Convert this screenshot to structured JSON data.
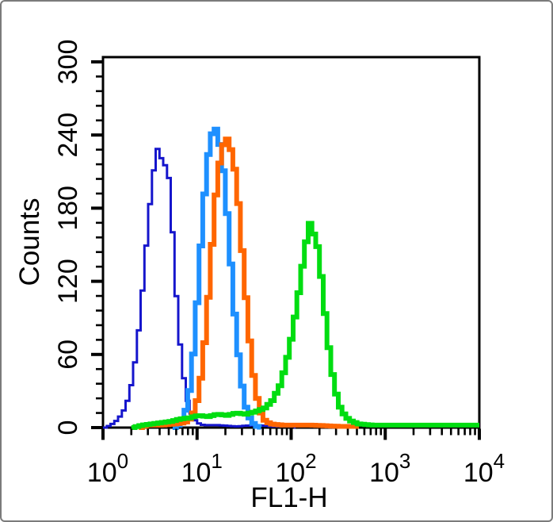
{
  "figure": {
    "background": "#ffffff",
    "border_color": "#7b7b7b"
  },
  "chart_data": {
    "type": "line",
    "subtype": "flow-cytometry-step-histogram",
    "title": "",
    "xlabel": "FL1-H",
    "ylabel": "Counts",
    "x_scale": "log10",
    "x_range": [
      1,
      10000
    ],
    "y_range": [
      0,
      300
    ],
    "grid": false,
    "legend_position": "none",
    "x_major_tick_base": "10",
    "x_major_tick_exponents": [
      0,
      1,
      2,
      3,
      4
    ],
    "x_minor_tick_multiples": [
      2,
      3,
      4,
      5,
      6,
      7,
      8,
      9
    ],
    "y_major_ticks": [
      0,
      60,
      120,
      180,
      240,
      300
    ],
    "y_minor_step": 12,
    "series": [
      {
        "name": "dark-blue",
        "color": "#1515CC",
        "line_width": 3,
        "peak": {
          "x": 3.7,
          "count": 231
        },
        "points": [
          [
            1.0,
            0
          ],
          [
            1.15,
            2
          ],
          [
            1.26,
            4
          ],
          [
            1.38,
            7
          ],
          [
            1.51,
            11
          ],
          [
            1.66,
            17
          ],
          [
            1.82,
            27
          ],
          [
            2.0,
            43
          ],
          [
            2.19,
            65
          ],
          [
            2.4,
            95
          ],
          [
            2.63,
            130
          ],
          [
            2.88,
            168
          ],
          [
            3.16,
            198
          ],
          [
            3.47,
            224
          ],
          [
            3.72,
            231
          ],
          [
            3.98,
            221
          ],
          [
            4.27,
            213
          ],
          [
            4.57,
            220
          ],
          [
            4.9,
            197
          ],
          [
            5.25,
            160
          ],
          [
            5.62,
            120
          ],
          [
            6.03,
            84
          ],
          [
            6.61,
            52
          ],
          [
            7.24,
            29
          ],
          [
            7.94,
            15
          ],
          [
            8.71,
            8
          ],
          [
            9.55,
            4
          ],
          [
            11.2,
            2
          ],
          [
            15.8,
            2
          ],
          [
            25.1,
            1
          ],
          [
            39.8,
            2
          ],
          [
            63.1,
            1
          ],
          [
            100,
            1
          ],
          [
            112,
            0
          ]
        ]
      },
      {
        "name": "light-blue",
        "color": "#1E90FF",
        "line_width": 6,
        "peak": {
          "x": 15,
          "count": 246
        },
        "points": [
          [
            5.5,
            0
          ],
          [
            6.03,
            2
          ],
          [
            6.61,
            6
          ],
          [
            7.24,
            14
          ],
          [
            7.94,
            30
          ],
          [
            8.71,
            60
          ],
          [
            9.55,
            102
          ],
          [
            10.5,
            150
          ],
          [
            11.5,
            192
          ],
          [
            12.6,
            224
          ],
          [
            13.8,
            241
          ],
          [
            15.0,
            246
          ],
          [
            16.2,
            237
          ],
          [
            17.8,
            219
          ],
          [
            19.5,
            186
          ],
          [
            21.4,
            145
          ],
          [
            23.4,
            103
          ],
          [
            25.7,
            67
          ],
          [
            28.2,
            39
          ],
          [
            31.0,
            19
          ],
          [
            34.0,
            9
          ],
          [
            37.2,
            4
          ],
          [
            41.7,
            1
          ],
          [
            47.9,
            0
          ]
        ]
      },
      {
        "name": "orange",
        "color": "#FF6600",
        "line_width": 6,
        "peak": {
          "x": 20,
          "count": 237
        },
        "points": [
          [
            2.4,
            0
          ],
          [
            2.82,
            2
          ],
          [
            3.98,
            2
          ],
          [
            5.62,
            3
          ],
          [
            7.08,
            4
          ],
          [
            7.94,
            7
          ],
          [
            8.71,
            12
          ],
          [
            9.55,
            22
          ],
          [
            10.5,
            41
          ],
          [
            11.5,
            70
          ],
          [
            12.6,
            107
          ],
          [
            13.8,
            150
          ],
          [
            15.1,
            190
          ],
          [
            16.6,
            217
          ],
          [
            18.2,
            232
          ],
          [
            19.9,
            237
          ],
          [
            21.9,
            228
          ],
          [
            24.0,
            212
          ],
          [
            26.3,
            184
          ],
          [
            28.8,
            146
          ],
          [
            31.6,
            107
          ],
          [
            34.7,
            71
          ],
          [
            38.0,
            43
          ],
          [
            41.7,
            24
          ],
          [
            45.7,
            12
          ],
          [
            50.1,
            6
          ],
          [
            57.5,
            3
          ],
          [
            79.4,
            2
          ],
          [
            158,
            2
          ],
          [
            316,
            1
          ],
          [
            501,
            1
          ],
          [
            525,
            0
          ]
        ]
      },
      {
        "name": "green",
        "color": "#00DD11",
        "line_width": 6,
        "peak": {
          "x": 151,
          "count": 168
        },
        "points": [
          [
            2.0,
            0
          ],
          [
            2.51,
            2
          ],
          [
            3.16,
            3
          ],
          [
            3.98,
            4
          ],
          [
            5.01,
            5
          ],
          [
            6.31,
            7
          ],
          [
            7.94,
            8
          ],
          [
            10.0,
            10
          ],
          [
            12.6,
            9
          ],
          [
            15.8,
            11
          ],
          [
            20.0,
            10
          ],
          [
            25.1,
            12
          ],
          [
            31.6,
            11
          ],
          [
            39.8,
            13
          ],
          [
            50.1,
            16
          ],
          [
            60.3,
            22
          ],
          [
            72.4,
            34
          ],
          [
            83.2,
            50
          ],
          [
            95.5,
            72
          ],
          [
            110,
            100
          ],
          [
            126,
            132
          ],
          [
            138,
            152
          ],
          [
            151,
            168
          ],
          [
            166,
            159
          ],
          [
            182,
            149
          ],
          [
            200,
            124
          ],
          [
            219,
            94
          ],
          [
            240,
            66
          ],
          [
            263,
            44
          ],
          [
            288,
            28
          ],
          [
            316,
            17
          ],
          [
            355,
            10
          ],
          [
            398,
            6
          ],
          [
            501,
            3
          ],
          [
            708,
            2
          ],
          [
            1000,
            2
          ],
          [
            3160,
            2
          ],
          [
            10000,
            2
          ]
        ]
      }
    ]
  }
}
